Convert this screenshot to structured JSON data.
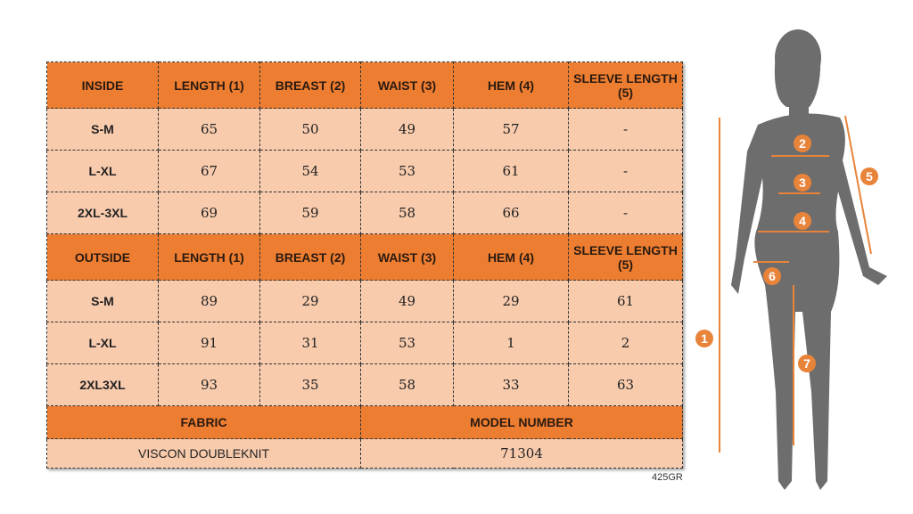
{
  "inside": {
    "headers": [
      "INSIDE",
      "LENGTH (1)",
      "BREAST (2)",
      "WAIST (3)",
      "HEM (4)",
      "SLEEVE LENGTH (5)"
    ],
    "rows": [
      [
        "S-M",
        "65",
        "50",
        "49",
        "57",
        "-"
      ],
      [
        "L-XL",
        "67",
        "54",
        "53",
        "61",
        "-"
      ],
      [
        "2XL-3XL",
        "69",
        "59",
        "58",
        "66",
        "-"
      ]
    ]
  },
  "outside": {
    "headers": [
      "OUTSIDE",
      "LENGTH (1)",
      "BREAST (2)",
      "WAIST (3)",
      "HEM (4)",
      "SLEEVE LENGTH (5)"
    ],
    "rows": [
      [
        "S-M",
        "89",
        "29",
        "49",
        "29",
        "61"
      ],
      [
        "L-XL",
        "91",
        "31",
        "53",
        "1",
        "2"
      ],
      [
        "2XL3XL",
        "93",
        "35",
        "58",
        "33",
        "63"
      ]
    ]
  },
  "footer": {
    "fabric_label": "FABRIC",
    "model_label": "MODEL NUMBER",
    "fabric": "VISCON DOUBLEKNIT",
    "model": "71304"
  },
  "code": "425GR",
  "markers": [
    "1",
    "2",
    "3",
    "4",
    "5",
    "6",
    "7"
  ],
  "colors": {
    "header": "#ED7D31",
    "body": "#F8CBAD",
    "silhouette": "#6d6d6d"
  }
}
